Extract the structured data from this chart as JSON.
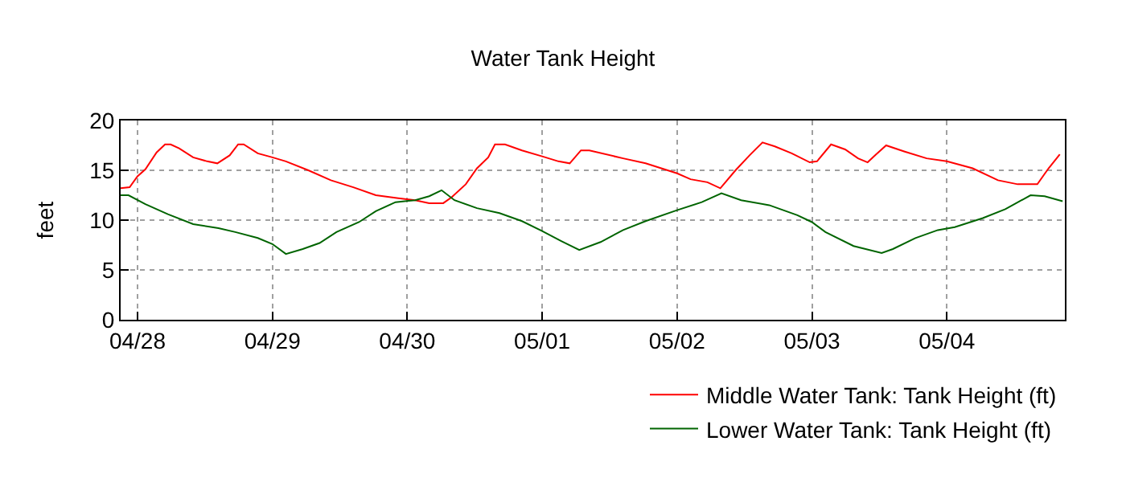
{
  "chart_data": {
    "type": "line",
    "title": "Water Tank Height",
    "ylabel": "feet",
    "xlim": [
      "--04-27T21:00",
      "--05-04T21:00"
    ],
    "xticks": [
      {
        "value": "--04-28",
        "label": "04/28"
      },
      {
        "value": "--04-29",
        "label": "04/29"
      },
      {
        "value": "--04-30",
        "label": "04/30"
      },
      {
        "value": "--05-01",
        "label": "05/01"
      },
      {
        "value": "--05-02",
        "label": "05/02"
      },
      {
        "value": "--05-03",
        "label": "05/03"
      },
      {
        "value": "--05-04",
        "label": "05/04"
      }
    ],
    "ylim": [
      0,
      20
    ],
    "yticks": [
      0,
      5,
      10,
      15,
      20
    ],
    "grid": true,
    "legend": "bottom right",
    "marker": "none",
    "line_style": "solid",
    "series": [
      {
        "name": "Middle Water Tank: Tank Height (ft)",
        "color": "#ff0000",
        "x": [
          "--04-27T21:00",
          "--04-27T22:36",
          "--04-28T00:00",
          "--04-28T01:24",
          "--04-28T03:24",
          "--04-28T04:54",
          "--04-28T05:54",
          "--04-28T07:24",
          "--04-28T09:54",
          "--04-28T12:24",
          "--04-28T14:12",
          "--04-28T16:24",
          "--04-28T17:54",
          "--04-28T18:54",
          "--04-28T21:24",
          "--04-29T00:00",
          "--04-29T02:24",
          "--04-29T06:24",
          "--04-29T10:24",
          "--04-29T14:24",
          "--04-29T18:24",
          "--04-29T22:24",
          "--04-30T01:24",
          "--04-30T03:54",
          "--04-30T06:24",
          "--04-30T07:54",
          "--04-30T10:24",
          "--04-30T12:24",
          "--04-30T14:24",
          "--04-30T15:36",
          "--04-30T17:24",
          "--04-30T20:24",
          "--05-01T00:00",
          "--05-01T02:54",
          "--05-01T04:54",
          "--05-01T06:54",
          "--05-01T08:24",
          "--05-01T14:24",
          "--05-01T18:24",
          "--05-02T00:00",
          "--05-02T02:24",
          "--05-02T05:24",
          "--05-02T07:42",
          "--05-02T10:24",
          "--05-02T12:54",
          "--05-02T15:12",
          "--05-02T17:24",
          "--05-02T20:24",
          "--05-02T23:36",
          "--05-03T00:54",
          "--05-03T03:24",
          "--05-03T05:54",
          "--05-03T08:12",
          "--05-03T09:54",
          "--05-03T11:24",
          "--05-03T13:12",
          "--05-03T16:24",
          "--05-03T20:24",
          "--05-04T00:00",
          "--05-04T04:36",
          "--05-04T09:06",
          "--05-04T12:36",
          "--05-04T16:06",
          "--05-04T18:06",
          "--05-04T20:06"
        ],
        "values": [
          13.2,
          13.3,
          14.4,
          15.1,
          16.8,
          17.6,
          17.6,
          17.2,
          16.3,
          15.9,
          15.7,
          16.5,
          17.6,
          17.6,
          16.7,
          16.3,
          15.9,
          15.0,
          14.0,
          13.3,
          12.5,
          12.2,
          12.0,
          11.7,
          11.7,
          12.3,
          13.6,
          15.2,
          16.3,
          17.6,
          17.6,
          17.0,
          16.4,
          15.9,
          15.7,
          17.0,
          17.0,
          16.2,
          15.7,
          14.7,
          14.1,
          13.8,
          13.2,
          15.0,
          16.5,
          17.8,
          17.4,
          16.7,
          15.8,
          15.9,
          17.6,
          17.1,
          16.2,
          15.8,
          16.6,
          17.5,
          16.9,
          16.2,
          15.9,
          15.2,
          14.0,
          13.6,
          13.6,
          15.2,
          16.6
        ]
      },
      {
        "name": "Lower Water Tank: Tank Height (ft)",
        "color": "#006400",
        "x": [
          "--04-27T21:00",
          "--04-27T22:24",
          "--04-28T01:24",
          "--04-28T05:24",
          "--04-28T09:54",
          "--04-28T14:24",
          "--04-28T17:24",
          "--04-28T21:24",
          "--04-29T00:00",
          "--04-29T02:24",
          "--04-29T05:24",
          "--04-29T08:24",
          "--04-29T11:24",
          "--04-29T15:24",
          "--04-29T18:24",
          "--04-29T21:54",
          "--04-30T01:24",
          "--04-30T03:54",
          "--04-30T06:06",
          "--04-30T08:24",
          "--04-30T12:24",
          "--04-30T16:24",
          "--04-30T20:24",
          "--05-01T00:00",
          "--05-01T03:24",
          "--05-01T06:36",
          "--05-01T10:24",
          "--05-01T14:24",
          "--05-01T18:24",
          "--05-02T00:00",
          "--05-02T04:24",
          "--05-02T07:54",
          "--05-02T11:24",
          "--05-02T16:24",
          "--05-02T21:24",
          "--05-03T00:00",
          "--05-03T02:24",
          "--05-03T07:24",
          "--05-03T12:24",
          "--05-03T14:24",
          "--05-03T18:24",
          "--05-03T22:24",
          "--05-04T01:24",
          "--05-04T06:24",
          "--05-04T10:24",
          "--05-04T14:54",
          "--05-04T17:24",
          "--05-04T20:36"
        ],
        "values": [
          12.5,
          12.5,
          11.6,
          10.6,
          9.6,
          9.2,
          8.8,
          8.2,
          7.6,
          6.6,
          7.1,
          7.7,
          8.8,
          9.8,
          10.9,
          11.8,
          12.0,
          12.4,
          13.0,
          12.0,
          11.2,
          10.7,
          9.9,
          8.9,
          7.9,
          7.0,
          7.8,
          9.0,
          9.9,
          11.0,
          11.8,
          12.7,
          12.0,
          11.5,
          10.5,
          9.8,
          8.8,
          7.4,
          6.7,
          7.1,
          8.2,
          9.0,
          9.3,
          10.2,
          11.1,
          12.5,
          12.4,
          11.9
        ]
      }
    ]
  }
}
